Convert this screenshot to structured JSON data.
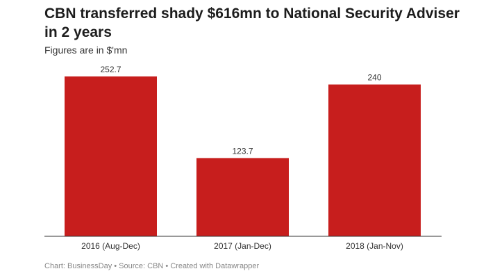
{
  "chart_data": {
    "type": "bar",
    "title": "CBN transferred shady $616mn to National Security Adviser in 2 years",
    "subtitle": "Figures are in $'mn",
    "categories": [
      "2016 (Aug-Dec)",
      "2017 (Jan-Dec)",
      "2018 (Jan-Nov)"
    ],
    "values": [
      252.7,
      123.7,
      240
    ],
    "value_labels": [
      "252.7",
      "123.7",
      "240"
    ],
    "ylim": [
      0,
      252.7
    ],
    "grid": false,
    "bar_color": "#c71e1d"
  },
  "footer": "Chart: BusinessDay • Source: CBN • Created with Datawrapper"
}
